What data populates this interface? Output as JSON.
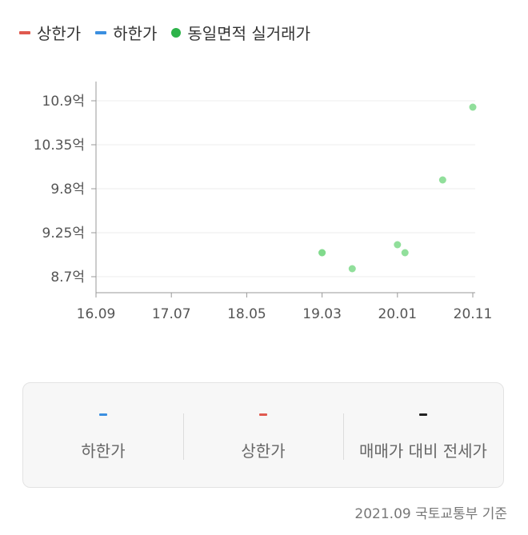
{
  "legend": [
    {
      "label": "상한가",
      "color": "#e05a4f",
      "shape": "dash"
    },
    {
      "label": "하한가",
      "color": "#3b8fe0",
      "shape": "dash"
    },
    {
      "label": "동일면적 실거래가",
      "color": "#2db34a",
      "shape": "dot"
    }
  ],
  "chart_data": {
    "type": "scatter",
    "x_ticks": [
      "16.09",
      "17.07",
      "18.05",
      "19.03",
      "20.01",
      "20.11"
    ],
    "y_ticks": [
      "8.7억",
      "9.25억",
      "9.8억",
      "10.35억",
      "10.9억"
    ],
    "ylim": [
      8.7,
      10.9
    ],
    "xlim": [
      "2016-09",
      "2020-11"
    ],
    "grid": true,
    "series": [
      {
        "name": "동일면적 실거래가",
        "color": "#7ed98a",
        "points": [
          {
            "x": "2019-03",
            "y": 9.0
          },
          {
            "x": "2019-03",
            "y": 9.0
          },
          {
            "x": "2019-07",
            "y": 8.8
          },
          {
            "x": "2020-01",
            "y": 9.1
          },
          {
            "x": "2020-02",
            "y": 9.0
          },
          {
            "x": "2020-07",
            "y": 9.91
          },
          {
            "x": "2020-11",
            "y": 10.82
          }
        ]
      }
    ]
  },
  "summary": [
    {
      "label": "하한가",
      "value": "-",
      "color": "#3b8fe0"
    },
    {
      "label": "상한가",
      "value": "-",
      "color": "#e05a4f"
    },
    {
      "label": "매매가 대비 전세가",
      "value": "-",
      "color": "#222222"
    }
  ],
  "footer": "2021.09 국토교통부 기준"
}
